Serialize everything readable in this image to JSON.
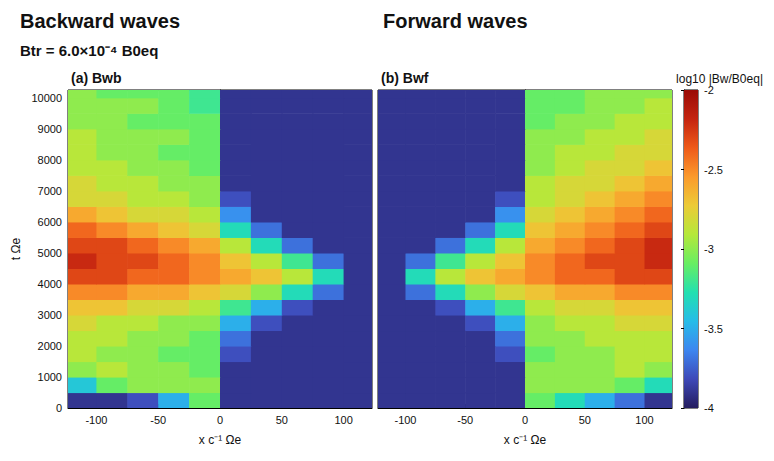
{
  "chart_data": [
    {
      "type": "heatmap",
      "title": "Backward waves",
      "annotation": "Btr = 6.0×10⁻⁴ B0eq",
      "subtitle": "(a) Bwb",
      "xlabel": "x c⁻¹ Ωe",
      "ylabel": "t Ωe",
      "xlim": [
        -123,
        123
      ],
      "xticks": [
        -100,
        -50,
        0,
        50,
        100
      ],
      "ylim": [
        0,
        10250
      ],
      "yticks": [
        0,
        1000,
        2000,
        3000,
        4000,
        5000,
        6000,
        7000,
        8000,
        9000,
        10000
      ],
      "tick_labels": true,
      "x_edges": [
        -123,
        -100,
        -75,
        -50,
        -25,
        0,
        25,
        50,
        75,
        100,
        123
      ],
      "y_edges": [
        0,
        500,
        1000,
        1500,
        2000,
        2500,
        3000,
        3500,
        4000,
        4500,
        5000,
        5500,
        6000,
        6500,
        7000,
        7500,
        8000,
        8500,
        9000,
        9500,
        10000,
        10250
      ],
      "values": [
        [
          -3.9,
          -3.9,
          -3.8,
          -3.5,
          -3.1,
          -3.9,
          -3.9,
          -3.9,
          -3.9,
          -3.9
        ],
        [
          -3.4,
          -3.1,
          -3.0,
          -3.0,
          -3.0,
          -3.9,
          -3.9,
          -3.9,
          -3.9,
          -3.9
        ],
        [
          -3.0,
          -2.9,
          -3.0,
          -3.0,
          -3.1,
          -3.9,
          -3.9,
          -3.9,
          -3.9,
          -3.9
        ],
        [
          -2.9,
          -3.0,
          -3.0,
          -3.1,
          -3.1,
          -3.8,
          -3.9,
          -3.9,
          -3.9,
          -3.9
        ],
        [
          -2.9,
          -2.9,
          -3.0,
          -3.0,
          -3.1,
          -3.7,
          -3.9,
          -3.9,
          -3.9,
          -3.9
        ],
        [
          -2.8,
          -2.9,
          -2.9,
          -3.0,
          -3.0,
          -3.5,
          -3.8,
          -3.9,
          -3.9,
          -3.9
        ],
        [
          -2.7,
          -2.7,
          -2.8,
          -2.8,
          -2.9,
          -3.2,
          -3.5,
          -3.8,
          -3.9,
          -3.9
        ],
        [
          -2.5,
          -2.5,
          -2.6,
          -2.6,
          -2.7,
          -2.8,
          -3.0,
          -3.3,
          -3.7,
          -3.9
        ],
        [
          -2.3,
          -2.3,
          -2.4,
          -2.4,
          -2.5,
          -2.6,
          -2.7,
          -2.9,
          -3.3,
          -3.9
        ],
        [
          -2.2,
          -2.3,
          -2.3,
          -2.4,
          -2.5,
          -2.7,
          -2.9,
          -3.2,
          -3.7,
          -3.9
        ],
        [
          -2.3,
          -2.3,
          -2.4,
          -2.5,
          -2.6,
          -2.9,
          -3.3,
          -3.7,
          -3.9,
          -3.9
        ],
        [
          -2.4,
          -2.5,
          -2.6,
          -2.7,
          -2.8,
          -3.3,
          -3.7,
          -3.9,
          -3.9,
          -3.9
        ],
        [
          -2.6,
          -2.7,
          -2.8,
          -2.8,
          -2.9,
          -3.6,
          -3.9,
          -3.9,
          -3.9,
          -3.9
        ],
        [
          -2.8,
          -2.8,
          -2.9,
          -2.9,
          -3.0,
          -3.8,
          -3.9,
          -3.9,
          -3.9,
          -3.9
        ],
        [
          -2.8,
          -2.9,
          -2.9,
          -3.0,
          -3.0,
          -3.9,
          -3.9,
          -3.9,
          -3.9,
          -3.9
        ],
        [
          -2.9,
          -2.9,
          -3.0,
          -3.0,
          -3.1,
          -3.9,
          -3.9,
          -3.9,
          -3.9,
          -3.9
        ],
        [
          -2.9,
          -3.0,
          -3.0,
          -3.1,
          -3.1,
          -3.9,
          -3.9,
          -3.9,
          -3.9,
          -3.9
        ],
        [
          -2.9,
          -3.0,
          -3.0,
          -3.0,
          -3.1,
          -3.9,
          -3.9,
          -3.9,
          -3.9,
          -3.9
        ],
        [
          -3.0,
          -3.0,
          -3.1,
          -3.1,
          -3.1,
          -3.9,
          -3.9,
          -3.9,
          -3.9,
          -3.9
        ],
        [
          -3.0,
          -3.0,
          -3.0,
          -3.1,
          -3.2,
          -3.9,
          -3.9,
          -3.9,
          -3.9,
          -3.9
        ],
        [
          -3.0,
          -3.1,
          -3.1,
          -3.1,
          -3.2,
          -3.9,
          -3.9,
          -3.9,
          -3.9,
          -3.9
        ]
      ]
    },
    {
      "type": "heatmap",
      "title": "Forward waves",
      "subtitle": "(b) Bwf",
      "xlabel": "x c⁻¹ Ωe",
      "xlim": [
        -123,
        123
      ],
      "xticks": [
        -100,
        -50,
        0,
        50,
        100
      ],
      "ylim": [
        0,
        10250
      ],
      "yticks": [
        0,
        1000,
        2000,
        3000,
        4000,
        5000,
        6000,
        7000,
        8000,
        9000,
        10000
      ],
      "tick_labels": "x",
      "x_edges": [
        -123,
        -100,
        -75,
        -50,
        -25,
        0,
        25,
        50,
        75,
        100,
        123
      ],
      "y_edges": [
        0,
        500,
        1000,
        1500,
        2000,
        2500,
        3000,
        3500,
        4000,
        4500,
        5000,
        5500,
        6000,
        6500,
        7000,
        7500,
        8000,
        8500,
        9000,
        9500,
        10000,
        10250
      ],
      "values": [
        [
          -3.9,
          -3.9,
          -3.9,
          -3.9,
          -3.9,
          -3.1,
          -3.3,
          -3.5,
          -3.7,
          -3.9
        ],
        [
          -3.9,
          -3.9,
          -3.9,
          -3.9,
          -3.9,
          -3.0,
          -3.0,
          -3.0,
          -3.1,
          -3.3
        ],
        [
          -3.9,
          -3.9,
          -3.9,
          -3.9,
          -3.9,
          -3.0,
          -3.0,
          -3.0,
          -2.9,
          -3.0
        ],
        [
          -3.9,
          -3.9,
          -3.9,
          -3.9,
          -3.8,
          -3.1,
          -3.0,
          -3.0,
          -2.9,
          -2.9
        ],
        [
          -3.9,
          -3.9,
          -3.9,
          -3.9,
          -3.7,
          -3.0,
          -3.0,
          -2.9,
          -2.9,
          -2.9
        ],
        [
          -3.9,
          -3.9,
          -3.9,
          -3.8,
          -3.5,
          -3.0,
          -2.9,
          -2.9,
          -2.8,
          -2.8
        ],
        [
          -3.9,
          -3.9,
          -3.8,
          -3.5,
          -3.2,
          -2.9,
          -2.8,
          -2.8,
          -2.7,
          -2.7
        ],
        [
          -3.9,
          -3.7,
          -3.3,
          -3.0,
          -2.8,
          -2.7,
          -2.6,
          -2.6,
          -2.5,
          -2.5
        ],
        [
          -3.9,
          -3.3,
          -2.9,
          -2.7,
          -2.6,
          -2.5,
          -2.4,
          -2.4,
          -2.3,
          -2.3
        ],
        [
          -3.9,
          -3.7,
          -3.2,
          -2.9,
          -2.7,
          -2.5,
          -2.4,
          -2.3,
          -2.3,
          -2.2
        ],
        [
          -3.9,
          -3.9,
          -3.7,
          -3.3,
          -2.9,
          -2.6,
          -2.5,
          -2.4,
          -2.3,
          -2.2
        ],
        [
          -3.9,
          -3.9,
          -3.9,
          -3.7,
          -3.3,
          -2.7,
          -2.6,
          -2.5,
          -2.4,
          -2.3
        ],
        [
          -3.9,
          -3.9,
          -3.9,
          -3.9,
          -3.6,
          -2.8,
          -2.7,
          -2.6,
          -2.5,
          -2.4
        ],
        [
          -3.9,
          -3.9,
          -3.9,
          -3.9,
          -3.8,
          -2.9,
          -2.8,
          -2.7,
          -2.6,
          -2.5
        ],
        [
          -3.9,
          -3.9,
          -3.9,
          -3.9,
          -3.9,
          -2.9,
          -2.8,
          -2.8,
          -2.7,
          -2.6
        ],
        [
          -3.9,
          -3.9,
          -3.9,
          -3.9,
          -3.9,
          -3.0,
          -2.9,
          -2.8,
          -2.8,
          -2.7
        ],
        [
          -3.9,
          -3.9,
          -3.9,
          -3.9,
          -3.9,
          -3.0,
          -2.9,
          -2.9,
          -2.8,
          -2.8
        ],
        [
          -3.9,
          -3.9,
          -3.9,
          -3.9,
          -3.9,
          -3.0,
          -3.0,
          -2.9,
          -2.9,
          -2.8
        ],
        [
          -3.9,
          -3.9,
          -3.9,
          -3.9,
          -3.9,
          -3.1,
          -3.0,
          -3.0,
          -2.9,
          -2.9
        ],
        [
          -3.9,
          -3.9,
          -3.9,
          -3.9,
          -3.9,
          -3.1,
          -3.1,
          -3.0,
          -3.0,
          -2.9
        ],
        [
          -3.9,
          -3.9,
          -3.9,
          -3.9,
          -3.9,
          -3.1,
          -3.1,
          -3.0,
          -3.0,
          -3.0
        ]
      ],
      "colorbar": {
        "label": "log10 |Bw/B0eq|",
        "lim": [
          -4,
          -2
        ],
        "ticks": [
          -4,
          -3.5,
          -3,
          -2.5,
          -2
        ]
      }
    }
  ]
}
